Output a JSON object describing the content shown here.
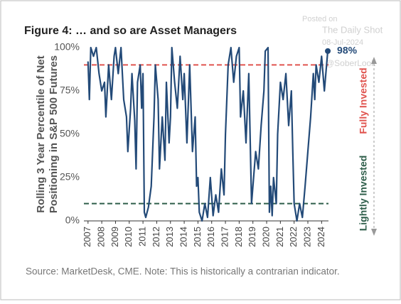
{
  "chart_data": {
    "type": "line",
    "title": "Figure 4: … and so are Asset Managers",
    "ylabel": [
      "Rolling 3 Year Percentile of Net",
      "Positioning in S&P 500 Futures"
    ],
    "source": "Source: MarketDesk, CME. Note: This is historically a contrarian indicator.",
    "watermark": [
      "Posted on",
      "The Daily Shot",
      "08-Jul-2024",
      "@SoberLook"
    ],
    "side_labels": [
      {
        "text": "Fully Invested",
        "color": "#e0544f"
      },
      {
        "text": "Lightly Invested",
        "color": "#2e5e4a"
      }
    ],
    "color": "#234a78",
    "x": [
      2007.0,
      2007.1,
      2007.2,
      2007.4,
      2007.6,
      2007.8,
      2008.0,
      2008.2,
      2008.3,
      2008.5,
      2008.7,
      2008.9,
      2009.0,
      2009.2,
      2009.4,
      2009.6,
      2009.8,
      2009.9,
      2010.1,
      2010.2,
      2010.4,
      2010.5,
      2010.6,
      2010.8,
      2010.9,
      2011.0,
      2011.1,
      2011.2,
      2011.4,
      2011.6,
      2011.8,
      2011.9,
      2012.1,
      2012.2,
      2012.4,
      2012.6,
      2012.7,
      2012.9,
      2013.0,
      2013.1,
      2013.3,
      2013.5,
      2013.7,
      2013.9,
      2014.0,
      2014.2,
      2014.4,
      2014.6,
      2014.8,
      2014.9,
      2015.0,
      2015.1,
      2015.3,
      2015.5,
      2015.7,
      2015.9,
      2016.1,
      2016.3,
      2016.5,
      2016.7,
      2016.9,
      2017.0,
      2017.2,
      2017.4,
      2017.6,
      2017.8,
      2018.0,
      2018.1,
      2018.3,
      2018.5,
      2018.7,
      2018.9,
      2019.0,
      2019.2,
      2019.4,
      2019.6,
      2019.8,
      2019.9,
      2020.1,
      2020.2,
      2020.3,
      2020.4,
      2020.5,
      2020.7,
      2020.8,
      2021.0,
      2021.2,
      2021.4,
      2021.6,
      2021.8,
      2021.9,
      2022.0,
      2022.2,
      2022.4,
      2022.6,
      2022.8,
      2023.0,
      2023.2,
      2023.4,
      2023.5,
      2023.6,
      2023.8,
      2024.0,
      2024.2,
      2024.45
    ],
    "values": [
      92,
      70,
      100,
      95,
      100,
      85,
      75,
      80,
      60,
      90,
      70,
      95,
      100,
      85,
      100,
      70,
      60,
      40,
      65,
      85,
      58,
      30,
      80,
      90,
      65,
      85,
      5,
      2,
      8,
      20,
      60,
      90,
      70,
      30,
      60,
      35,
      80,
      45,
      60,
      100,
      80,
      65,
      95,
      70,
      85,
      45,
      90,
      40,
      60,
      20,
      25,
      5,
      0,
      10,
      2,
      25,
      3,
      15,
      5,
      30,
      15,
      50,
      90,
      100,
      80,
      95,
      100,
      60,
      75,
      45,
      85,
      10,
      20,
      40,
      30,
      55,
      75,
      98,
      100,
      5,
      20,
      3,
      25,
      10,
      50,
      80,
      70,
      85,
      55,
      75,
      40,
      10,
      0,
      10,
      2,
      20,
      40,
      60,
      85,
      70,
      90,
      80,
      95,
      75,
      98
    ],
    "xlim": [
      2006.7,
      2024.5
    ],
    "xticks": [
      2007,
      2008,
      2009,
      2010,
      2011,
      2012,
      2013,
      2014,
      2015,
      2016,
      2017,
      2018,
      2019,
      2020,
      2021,
      2022,
      2023,
      2024
    ],
    "ylim": [
      0,
      100
    ],
    "yticks": [
      {
        "value": 0,
        "label": "0%"
      },
      {
        "value": 25,
        "label": "25%"
      },
      {
        "value": 50,
        "label": "50%"
      },
      {
        "value": 75,
        "label": "75%"
      },
      {
        "value": 100,
        "label": "100%"
      }
    ],
    "hlines": [
      {
        "value": 90,
        "color": "#e0544f"
      },
      {
        "value": 10,
        "color": "#2e5e4a"
      }
    ],
    "annotation": {
      "text": "98%",
      "x": 2024.45,
      "y": 98
    }
  }
}
